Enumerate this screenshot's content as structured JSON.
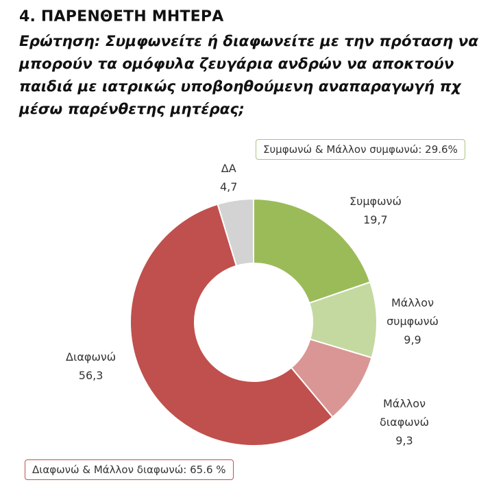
{
  "title": "4. ΠΑΡΕΝΘΕΤΗ ΜΗΤΕΡΑ",
  "question": "Ερώτηση: Συμφωνείτε ή διαφωνείτε με την πρόταση να μπορούν τα ομόφυλα ζευγάρια ανδρών να αποκτούν παιδιά με ιατρικώς υποβοηθούμενη αναπαραγωγή πχ μέσω παρένθετης μητέρας;",
  "chart_data": {
    "type": "pie",
    "donut": true,
    "slices": [
      {
        "label": "Συμφωνώ",
        "value": 19.7,
        "display": "19,7",
        "color": "#9bbb59"
      },
      {
        "label": "Μάλλον συμφωνώ",
        "value": 9.9,
        "display": "9,9",
        "color": "#c4d9a0"
      },
      {
        "label": "Μάλλον διαφωνώ",
        "value": 9.3,
        "display": "9,3",
        "color": "#d99694"
      },
      {
        "label": "Διαφωνώ",
        "value": 56.3,
        "display": "56,3",
        "color": "#c0504d"
      },
      {
        "label": "ΔΑ",
        "value": 4.7,
        "display": "4,7",
        "color": "#d3d3d3"
      }
    ],
    "annotations": [
      {
        "text": "Συμφωνώ & Μάλλον συμφωνώ: 29.6%",
        "border_color": "#9bbb59"
      },
      {
        "text": "Διαφωνώ & Μάλλον διαφωνώ: 65.6 %",
        "border_color": "#c0504d"
      }
    ]
  }
}
